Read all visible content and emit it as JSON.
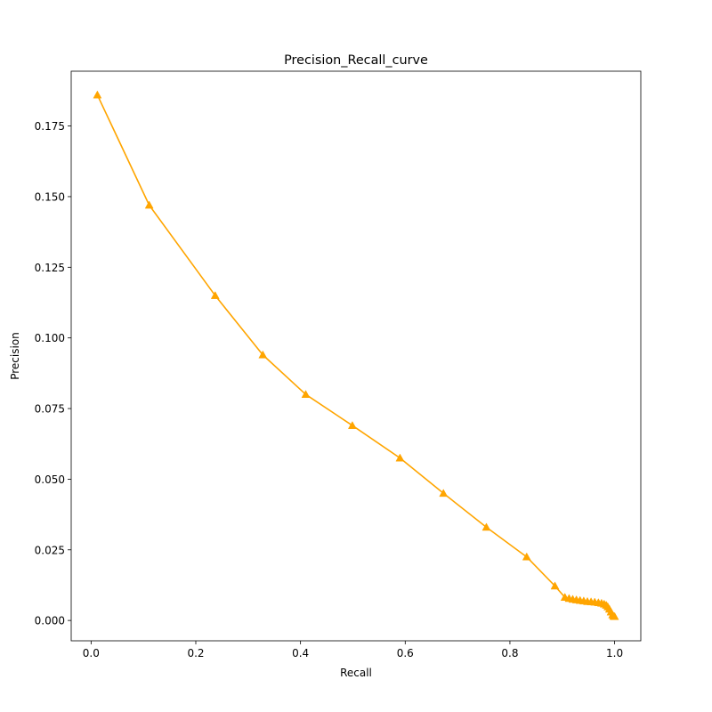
{
  "chart_data": {
    "type": "line",
    "title": "Precision_Recall_curve",
    "xlabel": "Recall",
    "ylabel": "Precision",
    "xlim": [
      -0.038,
      1.05
    ],
    "ylim": [
      -0.0072,
      0.1944
    ],
    "xticks": [
      0.0,
      0.2,
      0.4,
      0.6,
      0.8,
      1.0
    ],
    "xtick_labels": [
      "0.0",
      "0.2",
      "0.4",
      "0.6",
      "0.8",
      "1.0"
    ],
    "yticks": [
      0.0,
      0.025,
      0.05,
      0.075,
      0.1,
      0.125,
      0.15,
      0.175
    ],
    "ytick_labels": [
      "0.000",
      "0.025",
      "0.050",
      "0.075",
      "0.100",
      "0.125",
      "0.150",
      "0.175"
    ],
    "grid": false,
    "legend": null,
    "series": [
      {
        "color": "#ffa500",
        "marker": "triangle-up",
        "x": [
          0.012,
          0.111,
          0.237,
          0.328,
          0.41,
          0.499,
          0.59,
          0.673,
          0.755,
          0.832,
          0.886,
          0.905,
          0.913,
          0.92,
          0.927,
          0.934,
          0.941,
          0.948,
          0.955,
          0.962,
          0.969,
          0.975,
          0.98,
          0.984,
          0.987,
          0.99,
          0.993,
          0.996,
          0.998,
          1.0
        ],
        "y": [
          0.186,
          0.147,
          0.115,
          0.094,
          0.08,
          0.069,
          0.0575,
          0.045,
          0.033,
          0.0225,
          0.0122,
          0.0082,
          0.0078,
          0.0075,
          0.0073,
          0.0071,
          0.0069,
          0.0067,
          0.0066,
          0.0065,
          0.0063,
          0.0061,
          0.0058,
          0.0054,
          0.0048,
          0.004,
          0.003,
          0.002,
          0.0015,
          0.0014
        ]
      }
    ]
  }
}
